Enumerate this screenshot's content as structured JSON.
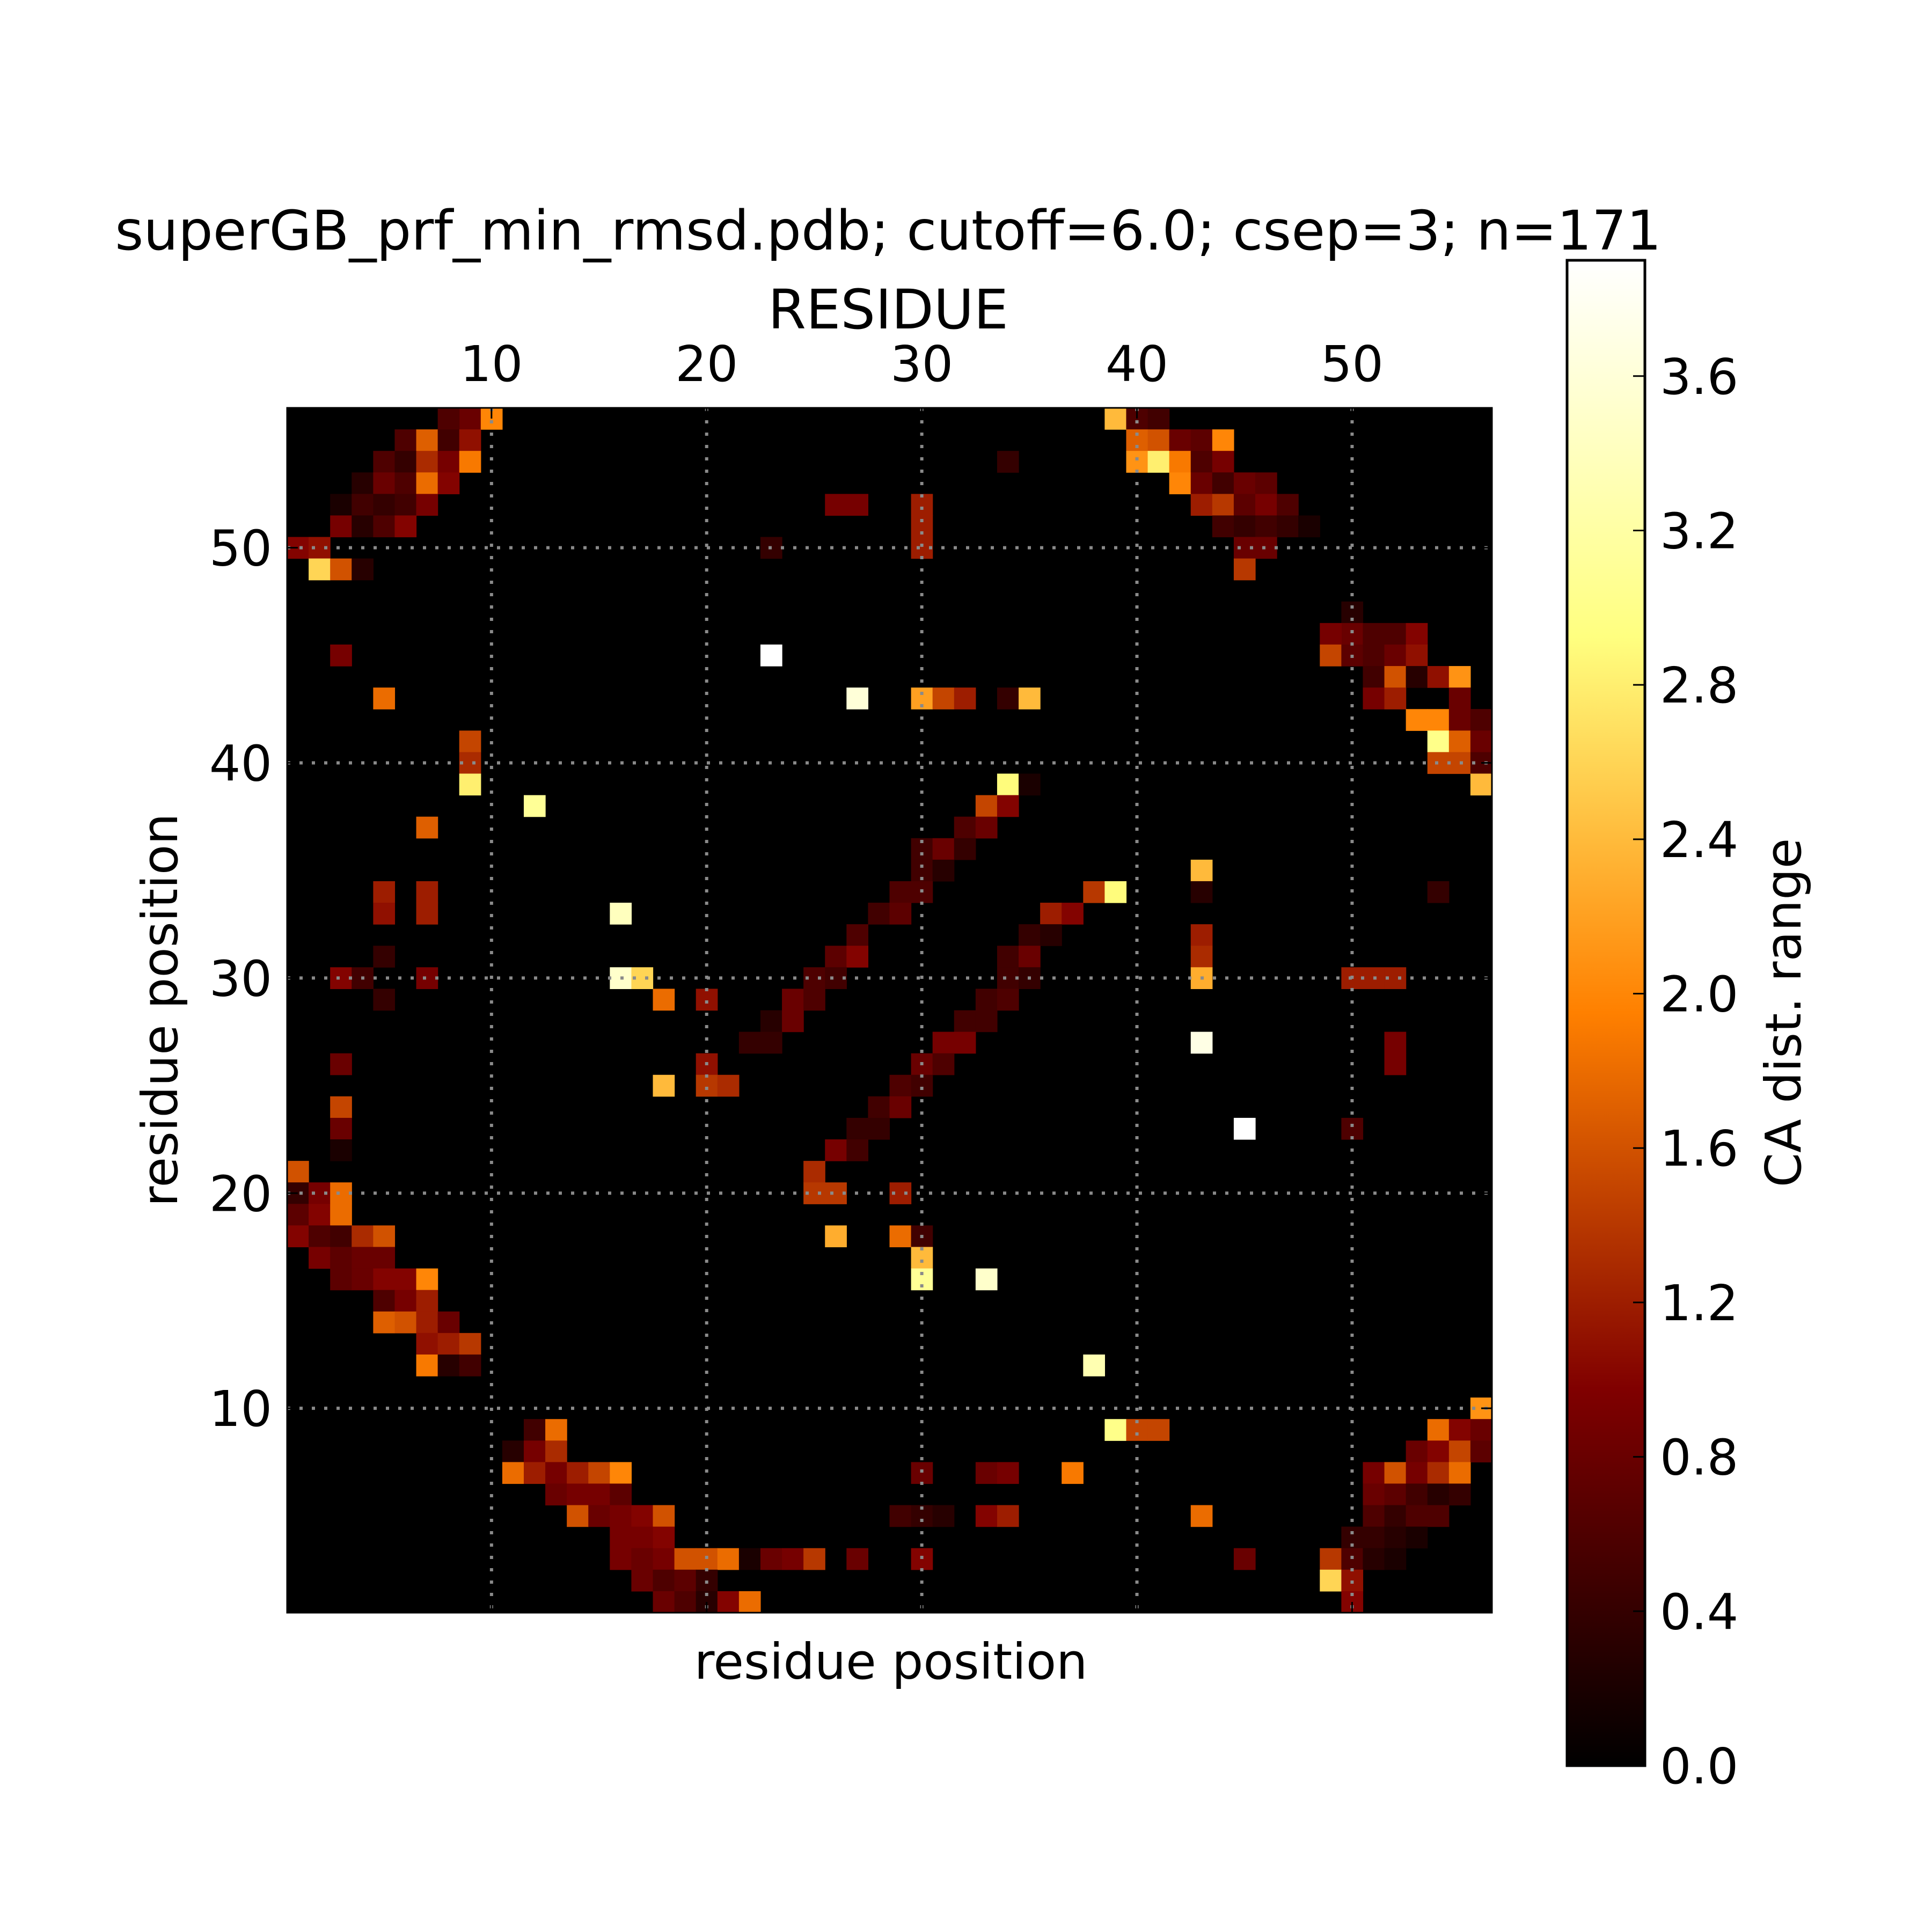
{
  "chart_data": {
    "type": "heatmap",
    "title": "superGB_prf_min_rmsd.pdb; cutoff=6.0; csep=3; n=171",
    "top_xlabel": "RESIDUE",
    "xlabel": "residue position",
    "ylabel": "residue position",
    "xlim": [
      0.5,
      56.5
    ],
    "ylim": [
      0.5,
      56.5
    ],
    "xticks": [
      10,
      20,
      30,
      40,
      50
    ],
    "yticks": [
      10,
      20,
      30,
      40,
      50
    ],
    "grid": true,
    "colorbar": {
      "label": "CA dist. range",
      "range": [
        0.0,
        3.9
      ],
      "ticks": [
        "0.0",
        "0.4",
        "0.8",
        "1.2",
        "1.6",
        "2.0",
        "2.4",
        "2.8",
        "3.2",
        "3.6"
      ]
    },
    "cells": [
      [
        9,
        56,
        0.8
      ],
      [
        10,
        56,
        2.0
      ],
      [
        8,
        56,
        0.6
      ],
      [
        39,
        56,
        2.4
      ],
      [
        40,
        56,
        0.6
      ],
      [
        41,
        56,
        0.5
      ],
      [
        6,
        55,
        0.6
      ],
      [
        7,
        55,
        1.7
      ],
      [
        8,
        55,
        0.5
      ],
      [
        9,
        55,
        1.1
      ],
      [
        40,
        55,
        1.7
      ],
      [
        41,
        55,
        1.6
      ],
      [
        42,
        55,
        0.8
      ],
      [
        43,
        55,
        0.7
      ],
      [
        44,
        55,
        2.0
      ],
      [
        5,
        54,
        0.6
      ],
      [
        6,
        54,
        0.4
      ],
      [
        7,
        54,
        1.3
      ],
      [
        8,
        54,
        0.9
      ],
      [
        9,
        54,
        1.9
      ],
      [
        34,
        54,
        0.4
      ],
      [
        40,
        54,
        2.1
      ],
      [
        41,
        54,
        2.8
      ],
      [
        42,
        54,
        1.9
      ],
      [
        43,
        54,
        0.6
      ],
      [
        44,
        54,
        0.9
      ],
      [
        4,
        53,
        0.3
      ],
      [
        5,
        53,
        0.8
      ],
      [
        6,
        53,
        0.6
      ],
      [
        7,
        53,
        1.8
      ],
      [
        8,
        53,
        1.0
      ],
      [
        42,
        53,
        2.0
      ],
      [
        43,
        53,
        0.8
      ],
      [
        44,
        53,
        0.5
      ],
      [
        45,
        53,
        0.8
      ],
      [
        46,
        53,
        0.7
      ],
      [
        3,
        52,
        0.2
      ],
      [
        4,
        52,
        0.5
      ],
      [
        5,
        52,
        0.4
      ],
      [
        6,
        52,
        0.5
      ],
      [
        7,
        52,
        0.9
      ],
      [
        26,
        52,
        0.9
      ],
      [
        27,
        52,
        0.9
      ],
      [
        30,
        52,
        1.2
      ],
      [
        43,
        52,
        1.2
      ],
      [
        44,
        52,
        1.4
      ],
      [
        45,
        52,
        0.7
      ],
      [
        46,
        52,
        0.9
      ],
      [
        47,
        52,
        0.6
      ],
      [
        3,
        51,
        0.9
      ],
      [
        4,
        51,
        0.3
      ],
      [
        5,
        51,
        0.6
      ],
      [
        6,
        51,
        1.0
      ],
      [
        30,
        51,
        1.2
      ],
      [
        44,
        51,
        0.5
      ],
      [
        45,
        51,
        0.4
      ],
      [
        46,
        51,
        0.5
      ],
      [
        47,
        51,
        0.4
      ],
      [
        48,
        51,
        0.2
      ],
      [
        1,
        50,
        1.0
      ],
      [
        2,
        50,
        1.1
      ],
      [
        23,
        50,
        0.4
      ],
      [
        30,
        50,
        1.2
      ],
      [
        45,
        50,
        0.8
      ],
      [
        46,
        50,
        0.8
      ],
      [
        2,
        49,
        2.6
      ],
      [
        3,
        49,
        1.6
      ],
      [
        4,
        49,
        0.3
      ],
      [
        45,
        49,
        1.4
      ],
      [
        50,
        47,
        0.3
      ],
      [
        50,
        46,
        0.8
      ],
      [
        49,
        46,
        0.9
      ],
      [
        51,
        46,
        0.6
      ],
      [
        52,
        46,
        0.6
      ],
      [
        53,
        46,
        1.0
      ],
      [
        3,
        45,
        0.9
      ],
      [
        23,
        45,
        3.9
      ],
      [
        49,
        45,
        1.5
      ],
      [
        50,
        45,
        0.7
      ],
      [
        51,
        45,
        0.6
      ],
      [
        52,
        45,
        0.8
      ],
      [
        53,
        45,
        1.1
      ],
      [
        51,
        44,
        0.5
      ],
      [
        52,
        44,
        1.6
      ],
      [
        53,
        44,
        0.3
      ],
      [
        54,
        44,
        1.1
      ],
      [
        55,
        44,
        2.1
      ],
      [
        5,
        43,
        1.8
      ],
      [
        27,
        43,
        3.6
      ],
      [
        30,
        43,
        2.2
      ],
      [
        31,
        43,
        1.5
      ],
      [
        32,
        43,
        1.2
      ],
      [
        34,
        43,
        0.4
      ],
      [
        35,
        43,
        2.4
      ],
      [
        51,
        43,
        0.9
      ],
      [
        52,
        43,
        1.2
      ],
      [
        55,
        43,
        0.8
      ],
      [
        53,
        42,
        2.0
      ],
      [
        54,
        42,
        2.0
      ],
      [
        55,
        42,
        0.8
      ],
      [
        56,
        42,
        0.6
      ],
      [
        9,
        41,
        1.5
      ],
      [
        54,
        41,
        3.0
      ],
      [
        55,
        41,
        1.7
      ],
      [
        56,
        41,
        0.8
      ],
      [
        9,
        40,
        1.3
      ],
      [
        54,
        40,
        1.5
      ],
      [
        55,
        40,
        1.5
      ],
      [
        56,
        40,
        0.6
      ],
      [
        9,
        39,
        2.8
      ],
      [
        34,
        39,
        2.9
      ],
      [
        35,
        39,
        0.2
      ],
      [
        56,
        39,
        2.4
      ],
      [
        12,
        38,
        3.1
      ],
      [
        33,
        38,
        1.5
      ],
      [
        34,
        38,
        1.0
      ],
      [
        7,
        37,
        1.7
      ],
      [
        32,
        37,
        0.6
      ],
      [
        33,
        37,
        0.8
      ],
      [
        30,
        36,
        0.5
      ],
      [
        31,
        36,
        0.8
      ],
      [
        32,
        36,
        0.4
      ],
      [
        30,
        35,
        0.5
      ],
      [
        31,
        35,
        0.3
      ],
      [
        43,
        35,
        2.4
      ],
      [
        5,
        34,
        1.2
      ],
      [
        7,
        34,
        1.2
      ],
      [
        29,
        34,
        0.6
      ],
      [
        30,
        34,
        0.6
      ],
      [
        38,
        34,
        1.4
      ],
      [
        39,
        34,
        2.9
      ],
      [
        43,
        34,
        0.3
      ],
      [
        54,
        34,
        0.4
      ],
      [
        5,
        33,
        1.1
      ],
      [
        7,
        33,
        1.2
      ],
      [
        16,
        33,
        3.4
      ],
      [
        28,
        33,
        0.5
      ],
      [
        29,
        33,
        0.7
      ],
      [
        36,
        33,
        1.2
      ],
      [
        37,
        33,
        1.0
      ],
      [
        27,
        32,
        0.6
      ],
      [
        35,
        32,
        0.4
      ],
      [
        36,
        32,
        0.3
      ],
      [
        43,
        32,
        1.2
      ],
      [
        5,
        31,
        0.4
      ],
      [
        26,
        31,
        0.7
      ],
      [
        27,
        31,
        1.0
      ],
      [
        34,
        31,
        0.5
      ],
      [
        35,
        31,
        0.8
      ],
      [
        43,
        31,
        1.3
      ],
      [
        3,
        30,
        1.0
      ],
      [
        4,
        30,
        0.5
      ],
      [
        7,
        30,
        0.9
      ],
      [
        16,
        30,
        3.5
      ],
      [
        17,
        30,
        2.6
      ],
      [
        25,
        30,
        0.6
      ],
      [
        26,
        30,
        0.5
      ],
      [
        34,
        30,
        0.5
      ],
      [
        35,
        30,
        0.4
      ],
      [
        43,
        30,
        2.3
      ],
      [
        50,
        30,
        1.2
      ],
      [
        51,
        30,
        1.2
      ],
      [
        52,
        30,
        1.2
      ],
      [
        5,
        29,
        0.4
      ],
      [
        18,
        29,
        1.8
      ],
      [
        20,
        29,
        1.1
      ],
      [
        24,
        29,
        0.8
      ],
      [
        25,
        29,
        0.6
      ],
      [
        33,
        29,
        0.5
      ],
      [
        34,
        29,
        0.6
      ],
      [
        23,
        28,
        0.3
      ],
      [
        24,
        28,
        0.8
      ],
      [
        32,
        28,
        0.5
      ],
      [
        33,
        28,
        0.5
      ],
      [
        22,
        27,
        0.4
      ],
      [
        23,
        27,
        0.4
      ],
      [
        31,
        27,
        0.9
      ],
      [
        32,
        27,
        0.9
      ],
      [
        43,
        27,
        3.7
      ],
      [
        52,
        27,
        0.9
      ],
      [
        3,
        26,
        0.8
      ],
      [
        20,
        26,
        1.1
      ],
      [
        30,
        26,
        0.8
      ],
      [
        31,
        26,
        0.6
      ],
      [
        52,
        26,
        0.9
      ],
      [
        18,
        25,
        2.4
      ],
      [
        20,
        25,
        1.4
      ],
      [
        21,
        25,
        1.3
      ],
      [
        29,
        25,
        0.6
      ],
      [
        30,
        25,
        0.5
      ],
      [
        3,
        24,
        1.5
      ],
      [
        28,
        24,
        0.5
      ],
      [
        29,
        24,
        0.8
      ],
      [
        3,
        23,
        0.8
      ],
      [
        27,
        23,
        0.4
      ],
      [
        28,
        23,
        0.4
      ],
      [
        45,
        23,
        3.9
      ],
      [
        50,
        23,
        0.6
      ],
      [
        3,
        22,
        0.2
      ],
      [
        26,
        22,
        0.9
      ],
      [
        27,
        22,
        0.5
      ],
      [
        1,
        21,
        1.6
      ],
      [
        25,
        21,
        1.3
      ],
      [
        1,
        20,
        0.4
      ],
      [
        2,
        20,
        0.9
      ],
      [
        3,
        20,
        1.8
      ],
      [
        25,
        20,
        1.4
      ],
      [
        26,
        20,
        1.4
      ],
      [
        29,
        20,
        1.2
      ],
      [
        1,
        19,
        0.7
      ],
      [
        2,
        19,
        1.0
      ],
      [
        3,
        19,
        1.8
      ],
      [
        1,
        18,
        1.0
      ],
      [
        2,
        18,
        0.6
      ],
      [
        3,
        18,
        0.5
      ],
      [
        4,
        18,
        1.3
      ],
      [
        5,
        18,
        1.6
      ],
      [
        26,
        18,
        2.3
      ],
      [
        29,
        18,
        1.8
      ],
      [
        30,
        18,
        0.5
      ],
      [
        2,
        17,
        0.9
      ],
      [
        3,
        17,
        0.7
      ],
      [
        4,
        17,
        0.8
      ],
      [
        5,
        17,
        0.8
      ],
      [
        30,
        17,
        2.4
      ],
      [
        3,
        16,
        0.7
      ],
      [
        4,
        16,
        0.8
      ],
      [
        5,
        16,
        1.0
      ],
      [
        6,
        16,
        1.0
      ],
      [
        7,
        16,
        2.0
      ],
      [
        30,
        16,
        3.1
      ],
      [
        33,
        16,
        3.5
      ],
      [
        5,
        15,
        0.6
      ],
      [
        6,
        15,
        0.9
      ],
      [
        7,
        15,
        1.2
      ],
      [
        5,
        14,
        1.7
      ],
      [
        6,
        14,
        1.6
      ],
      [
        7,
        14,
        1.2
      ],
      [
        8,
        14,
        0.8
      ],
      [
        7,
        13,
        1.1
      ],
      [
        8,
        13,
        1.2
      ],
      [
        9,
        13,
        1.4
      ],
      [
        7,
        12,
        1.9
      ],
      [
        8,
        12,
        0.3
      ],
      [
        9,
        12,
        0.5
      ],
      [
        38,
        12,
        3.3
      ],
      [
        56,
        10,
        2.1
      ],
      [
        12,
        9,
        0.5
      ],
      [
        13,
        9,
        1.8
      ],
      [
        39,
        9,
        3.0
      ],
      [
        40,
        9,
        1.5
      ],
      [
        41,
        9,
        1.5
      ],
      [
        54,
        9,
        1.8
      ],
      [
        55,
        9,
        1.0
      ],
      [
        56,
        9,
        0.8
      ],
      [
        11,
        8,
        0.3
      ],
      [
        12,
        8,
        0.9
      ],
      [
        13,
        8,
        1.3
      ],
      [
        53,
        8,
        0.8
      ],
      [
        54,
        8,
        1.0
      ],
      [
        55,
        8,
        1.5
      ],
      [
        56,
        8,
        0.7
      ],
      [
        11,
        7,
        1.8
      ],
      [
        12,
        7,
        1.2
      ],
      [
        13,
        7,
        0.9
      ],
      [
        14,
        7,
        1.2
      ],
      [
        15,
        7,
        1.5
      ],
      [
        16,
        7,
        2.0
      ],
      [
        30,
        7,
        0.8
      ],
      [
        33,
        7,
        0.8
      ],
      [
        34,
        7,
        0.9
      ],
      [
        37,
        7,
        1.9
      ],
      [
        51,
        7,
        0.9
      ],
      [
        52,
        7,
        1.6
      ],
      [
        53,
        7,
        0.9
      ],
      [
        54,
        7,
        1.3
      ],
      [
        55,
        7,
        1.8
      ],
      [
        13,
        6,
        0.8
      ],
      [
        14,
        6,
        0.9
      ],
      [
        15,
        6,
        0.9
      ],
      [
        16,
        6,
        0.7
      ],
      [
        51,
        6,
        0.8
      ],
      [
        52,
        6,
        0.7
      ],
      [
        53,
        6,
        0.5
      ],
      [
        54,
        6,
        0.3
      ],
      [
        55,
        6,
        0.4
      ],
      [
        14,
        5,
        1.6
      ],
      [
        15,
        5,
        0.8
      ],
      [
        16,
        5,
        0.9
      ],
      [
        17,
        5,
        1.0
      ],
      [
        18,
        5,
        1.6
      ],
      [
        29,
        5,
        0.5
      ],
      [
        30,
        5,
        0.4
      ],
      [
        31,
        5,
        0.3
      ],
      [
        33,
        5,
        1.0
      ],
      [
        34,
        5,
        1.2
      ],
      [
        43,
        5,
        1.8
      ],
      [
        51,
        5,
        0.6
      ],
      [
        52,
        5,
        0.4
      ],
      [
        53,
        5,
        0.6
      ],
      [
        54,
        5,
        0.6
      ],
      [
        16,
        4,
        0.9
      ],
      [
        17,
        4,
        0.9
      ],
      [
        18,
        4,
        1.0
      ],
      [
        50,
        4,
        0.4
      ],
      [
        51,
        4,
        0.4
      ],
      [
        52,
        4,
        0.3
      ],
      [
        53,
        4,
        0.2
      ],
      [
        16,
        3,
        0.9
      ],
      [
        17,
        3,
        0.8
      ],
      [
        18,
        3,
        0.9
      ],
      [
        19,
        3,
        1.6
      ],
      [
        20,
        3,
        1.6
      ],
      [
        21,
        3,
        1.8
      ],
      [
        22,
        3,
        0.2
      ],
      [
        23,
        3,
        0.8
      ],
      [
        24,
        3,
        0.9
      ],
      [
        25,
        3,
        1.4
      ],
      [
        27,
        3,
        0.8
      ],
      [
        30,
        3,
        1.0
      ],
      [
        45,
        3,
        0.8
      ],
      [
        49,
        3,
        1.4
      ],
      [
        50,
        3,
        0.6
      ],
      [
        51,
        3,
        0.3
      ],
      [
        52,
        3,
        0.2
      ],
      [
        17,
        2,
        0.8
      ],
      [
        18,
        2,
        0.6
      ],
      [
        19,
        2,
        0.7
      ],
      [
        20,
        2,
        0.4
      ],
      [
        49,
        2,
        2.6
      ],
      [
        50,
        2,
        1.1
      ],
      [
        18,
        1,
        0.8
      ],
      [
        19,
        1,
        0.6
      ],
      [
        20,
        1,
        0.3
      ],
      [
        21,
        1,
        1.0
      ],
      [
        22,
        1,
        1.8
      ],
      [
        50,
        1,
        1.0
      ]
    ]
  }
}
